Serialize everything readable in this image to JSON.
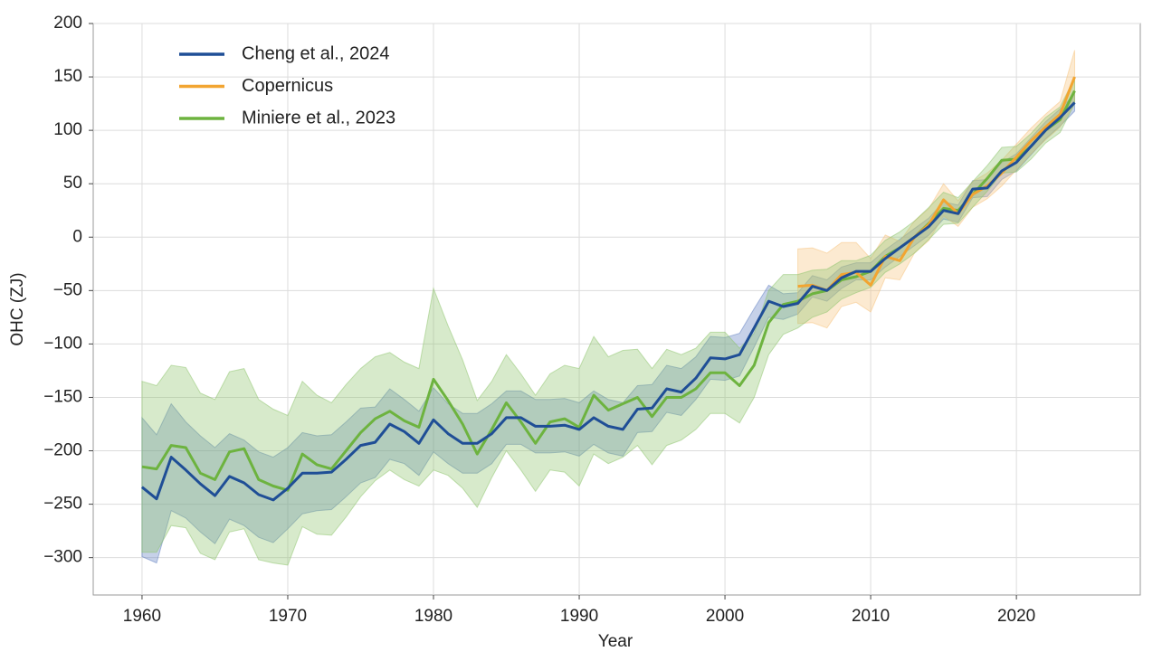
{
  "chart_data": {
    "type": "line",
    "x_label": "Year",
    "y_label": "OHC (ZJ)",
    "xlim": [
      1956.65,
      2028.5
    ],
    "ylim": [
      -335,
      200
    ],
    "xticks": [
      1960,
      1970,
      1980,
      1990,
      2000,
      2010,
      2020
    ],
    "yticks": [
      {
        "value": -300,
        "label": "−300"
      },
      {
        "value": -250,
        "label": "−250"
      },
      {
        "value": -200,
        "label": "−200"
      },
      {
        "value": -150,
        "label": "−150"
      },
      {
        "value": -100,
        "label": "−100"
      },
      {
        "value": -50,
        "label": "−50"
      },
      0,
      50,
      100,
      150,
      200
    ],
    "grid": true,
    "legend": "upper left",
    "series": [
      {
        "name": "Cheng et al., 2024",
        "color": "#1f4e96",
        "band_color": "#5b7cc0",
        "x": [
          1960,
          1961,
          1962,
          1963,
          1964,
          1965,
          1966,
          1967,
          1968,
          1969,
          1970,
          1971,
          1972,
          1973,
          1974,
          1975,
          1976,
          1977,
          1978,
          1979,
          1980,
          1981,
          1982,
          1983,
          1984,
          1985,
          1986,
          1987,
          1988,
          1989,
          1990,
          1991,
          1992,
          1993,
          1994,
          1995,
          1996,
          1997,
          1998,
          1999,
          2000,
          2001,
          2002,
          2003,
          2004,
          2005,
          2006,
          2007,
          2008,
          2009,
          2010,
          2011,
          2012,
          2013,
          2014,
          2015,
          2016,
          2017,
          2018,
          2019,
          2020,
          2021,
          2022,
          2023,
          2024
        ],
        "values": [
          -234,
          -245,
          -206,
          -218,
          -231,
          -242,
          -224,
          -230,
          -241,
          -246,
          -235,
          -221,
          -221,
          -220,
          -208,
          -195,
          -192,
          -175,
          -182,
          -193,
          -171,
          -184,
          -193,
          -193,
          -184,
          -169,
          -169,
          -177,
          -177,
          -176,
          -180,
          -169,
          -177,
          -180,
          -161,
          -160,
          -142,
          -145,
          -132,
          -113,
          -114,
          -110,
          -85,
          -60,
          -65,
          -62,
          -46,
          -50,
          -38,
          -32,
          -32,
          -20,
          -10,
          0,
          10,
          25,
          22,
          45,
          46,
          62,
          70,
          85,
          100,
          112,
          126
        ],
        "error": [
          65,
          60,
          50,
          45,
          45,
          45,
          40,
          40,
          40,
          40,
          38,
          38,
          35,
          35,
          35,
          35,
          33,
          33,
          30,
          30,
          30,
          28,
          28,
          28,
          28,
          25,
          25,
          25,
          25,
          25,
          25,
          25,
          25,
          25,
          22,
          22,
          22,
          22,
          20,
          20,
          20,
          20,
          18,
          15,
          12,
          10,
          10,
          10,
          10,
          8,
          8,
          8,
          8,
          8,
          8,
          8,
          8,
          8,
          8,
          8,
          8,
          8,
          8,
          8,
          8
        ]
      },
      {
        "name": "Copernicus",
        "color": "#f2a531",
        "band_color": "#f7c27a",
        "x": [
          2005,
          2006,
          2007,
          2008,
          2009,
          2010,
          2011,
          2012,
          2013,
          2014,
          2015,
          2016,
          2017,
          2018,
          2019,
          2020,
          2021,
          2022,
          2023,
          2024
        ],
        "values": [
          -46,
          -45,
          -50,
          -35,
          -33,
          -45,
          -18,
          -22,
          0,
          12,
          35,
          22,
          40,
          48,
          60,
          75,
          90,
          103,
          115,
          150
        ],
        "error": [
          35,
          35,
          35,
          30,
          28,
          25,
          20,
          18,
          15,
          15,
          15,
          12,
          12,
          12,
          12,
          12,
          12,
          12,
          12,
          25
        ]
      },
      {
        "name": "Miniere et al., 2023",
        "color": "#6db33f",
        "band_color": "#8cc46a",
        "x": [
          1960,
          1961,
          1962,
          1963,
          1964,
          1965,
          1966,
          1967,
          1968,
          1969,
          1970,
          1971,
          1972,
          1973,
          1974,
          1975,
          1976,
          1977,
          1978,
          1979,
          1980,
          1981,
          1982,
          1983,
          1984,
          1985,
          1986,
          1987,
          1988,
          1989,
          1990,
          1991,
          1992,
          1993,
          1994,
          1995,
          1996,
          1997,
          1998,
          1999,
          2000,
          2001,
          2002,
          2003,
          2004,
          2005,
          2006,
          2007,
          2008,
          2009,
          2010,
          2011,
          2012,
          2013,
          2014,
          2015,
          2016,
          2017,
          2018,
          2019,
          2020,
          2021,
          2022,
          2023,
          2024
        ],
        "values": [
          -215,
          -217,
          -195,
          -197,
          -221,
          -227,
          -201,
          -198,
          -227,
          -233,
          -237,
          -203,
          -213,
          -217,
          -200,
          -183,
          -170,
          -163,
          -172,
          -178,
          -133,
          -153,
          -175,
          -203,
          -180,
          -155,
          -173,
          -193,
          -173,
          -170,
          -178,
          -148,
          -162,
          -156,
          -150,
          -168,
          -150,
          -150,
          -142,
          -127,
          -127,
          -139,
          -120,
          -80,
          -63,
          -60,
          -53,
          -50,
          -40,
          -37,
          -32,
          -18,
          -10,
          0,
          13,
          27,
          25,
          40,
          55,
          72,
          73,
          85,
          100,
          110,
          137
        ],
        "error": [
          80,
          78,
          75,
          75,
          75,
          75,
          75,
          75,
          75,
          72,
          70,
          68,
          65,
          62,
          62,
          60,
          58,
          55,
          55,
          55,
          85,
          70,
          60,
          50,
          45,
          45,
          45,
          45,
          45,
          50,
          55,
          55,
          50,
          50,
          45,
          45,
          45,
          40,
          38,
          38,
          38,
          35,
          30,
          30,
          28,
          25,
          22,
          20,
          18,
          15,
          15,
          15,
          15,
          15,
          15,
          15,
          12,
          12,
          12,
          12,
          12,
          12,
          12,
          12,
          12
        ]
      }
    ]
  }
}
